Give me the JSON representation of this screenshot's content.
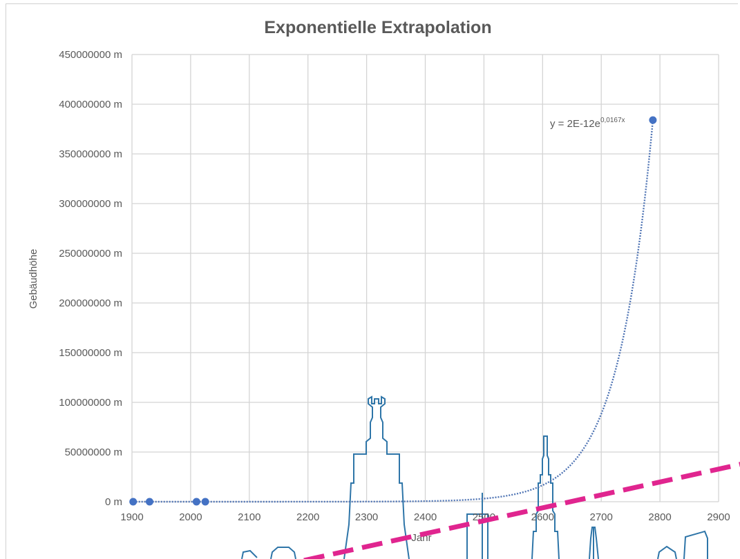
{
  "chart_data": {
    "type": "scatter",
    "title": "Exponentielle Extrapolation",
    "xlabel": "Jahr",
    "ylabel": "Gebäudhöhe",
    "xlim": [
      1900,
      2900
    ],
    "ylim": [
      0,
      450000000
    ],
    "x_ticks": [
      "1900",
      "2000",
      "2100",
      "2200",
      "2300",
      "2400",
      "2500",
      "2600",
      "2700",
      "2800",
      "2900"
    ],
    "y_ticks": [
      "0 m",
      "50000000 m",
      "100000000 m",
      "150000000 m",
      "200000000 m",
      "250000000 m",
      "300000000 m",
      "350000000 m",
      "400000000 m",
      "450000000 m"
    ],
    "grid": true,
    "series": [
      {
        "x": [
          1902,
          1930,
          2010,
          2025,
          2788
        ],
        "y": [
          0,
          0,
          0,
          0,
          384000000
        ]
      }
    ],
    "trendline": {
      "type": "exponential",
      "equation_base": "y = 2E-12e",
      "equation_exponent": "0,0167x",
      "a": 2e-12,
      "b": 0.0167
    }
  },
  "colors": {
    "marker": "#4472c4",
    "trendline": "#4f74b4",
    "grid": "#d4d4d4",
    "skyline": "#2e75a8",
    "dashed_line": "#e0258f",
    "text": "#595959"
  }
}
